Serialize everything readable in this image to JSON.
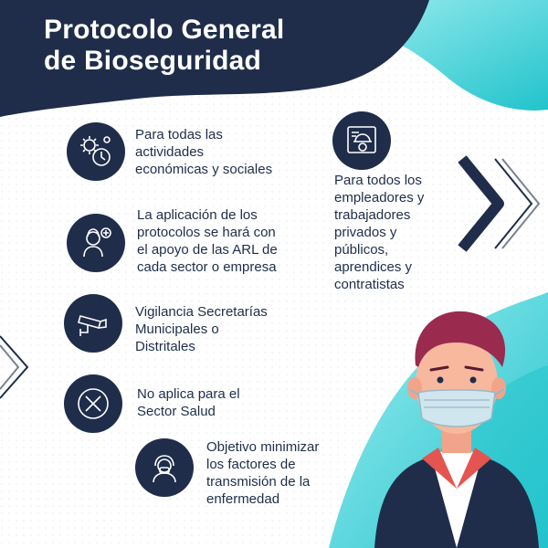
{
  "header": {
    "title_line1": "Protocolo General",
    "title_line2": "de Bioseguridad"
  },
  "colors": {
    "navy": "#1f2d4a",
    "teal": "#2ec8d0",
    "light_teal": "#7fe3e6",
    "white": "#ffffff"
  },
  "items": [
    {
      "icon": "gear-clock-icon",
      "text": "Para todas las\nactividades\neconómicas y sociales"
    },
    {
      "icon": "worker-helmet-icon",
      "text": "Para todos los\nempleadores y\ntrabajadores\nprivados y\npúblicos,\naprendices y\ncontratistas"
    },
    {
      "icon": "support-person-icon",
      "text": "La aplicación de los\nprotocolos se hará con\nel apoyo de las ARL de\ncada sector o empresa"
    },
    {
      "icon": "security-camera-icon",
      "text": "Vigilancia Secretarías\nMunicipales o\nDistritales"
    },
    {
      "icon": "cross-circle-icon",
      "text": "No aplica para el\nSector Salud"
    },
    {
      "icon": "masked-person-icon",
      "text": "Objetivo minimizar\nlos factores de\ntransmisión de la\nenfermedad"
    }
  ]
}
